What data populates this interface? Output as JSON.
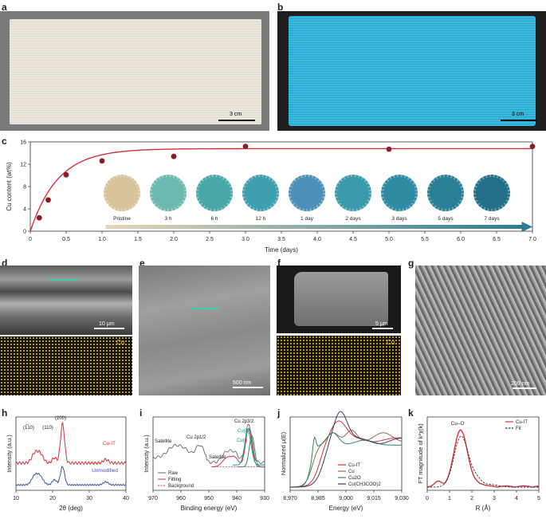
{
  "panels": {
    "a": "a",
    "b": "b",
    "c": "c",
    "d": "d",
    "e": "e",
    "f": "f",
    "g": "g",
    "h": "h",
    "i": "i",
    "j": "j",
    "k": "k"
  },
  "scalebars": {
    "a": "3 cm",
    "b": "3 cm",
    "d": "10 µm",
    "e": "500 nm",
    "f": "5 µm",
    "g": "200 nm"
  },
  "map_labels": {
    "d": "Cu",
    "f": "Cu"
  },
  "colors": {
    "fabric_white": "#e9e4d8",
    "fabric_blue": "#31b3d6",
    "red": "#d3333e",
    "darkred": "#8b1e23",
    "blue": "#3f57a6",
    "teal": "#1aa5a5",
    "green": "#2f8a5c",
    "brown": "#9a6a4a",
    "gold": "#e0a020"
  },
  "chart_data": [
    {
      "panel": "c",
      "type": "scatter",
      "xlabel": "Time (days)",
      "ylabel": "Cu content (wt%)",
      "xlim": [
        0,
        7
      ],
      "ylim": [
        0,
        16
      ],
      "xticks": [
        "0",
        "0.5",
        "1.0",
        "1.5",
        "2.0",
        "2.5",
        "3.0",
        "3.5",
        "4.0",
        "4.5",
        "5.0",
        "5.5",
        "6.0",
        "6.5",
        "7.0"
      ],
      "yticks": [
        "0",
        "4",
        "8",
        "12",
        "16"
      ],
      "x": [
        0.125,
        0.25,
        0.5,
        1,
        2,
        3,
        5,
        7
      ],
      "y": [
        2.4,
        5.6,
        10.1,
        12.6,
        13.4,
        15.2,
        14.7,
        15.2
      ],
      "fit": {
        "plateau": 14.8,
        "rate": 2.6
      },
      "swatches": [
        "Pristine",
        "3 h",
        "6 h",
        "12 h",
        "1 day",
        "2 days",
        "3 days",
        "5 days",
        "7 days"
      ]
    },
    {
      "panel": "h",
      "type": "line",
      "xlabel": "2θ (deg)",
      "ylabel": "Intensity (a.u.)",
      "xlim": [
        10,
        40
      ],
      "xticks": [
        "10",
        "20",
        "30",
        "40"
      ],
      "series": [
        {
          "name": "Cu-IT",
          "color": "#d3333e"
        },
        {
          "name": "Unmodified",
          "color": "#3f57a6"
        }
      ],
      "peaks": [
        "(1̅10)",
        "(110)",
        "(200)"
      ]
    },
    {
      "panel": "i",
      "type": "line",
      "xlabel": "Binding energy (eV)",
      "ylabel": "Intensity (a.u.)",
      "xlim": [
        970,
        928
      ],
      "xticks": [
        "970",
        "960",
        "950",
        "940",
        "930"
      ],
      "series": [
        {
          "name": "Raw",
          "color": "#666666"
        },
        {
          "name": "Fitting",
          "color": "#d3333e"
        },
        {
          "name": "Background",
          "color": "#c23a8a"
        }
      ],
      "annotations": [
        "Satellite",
        "Cu 2p1/2",
        "Satellite",
        "Cu 2p3/2",
        "Cu(II)",
        "Cu(I)"
      ]
    },
    {
      "panel": "j",
      "type": "line",
      "xlabel": "Energy (eV)",
      "ylabel": "Normalized μ(E)",
      "xlim": [
        8970,
        9030
      ],
      "xticks": [
        "8,970",
        "8,985",
        "9,000",
        "9,015",
        "9,030"
      ],
      "series": [
        {
          "name": "Cu-IT",
          "color": "#d3333e"
        },
        {
          "name": "Cu",
          "color": "#9a6a4a"
        },
        {
          "name": "Cu2O",
          "color": "#2f8a5c"
        },
        {
          "name": "Cu(CH3COO)2",
          "color": "#3a3a6a"
        }
      ]
    },
    {
      "panel": "k",
      "type": "line",
      "xlabel": "R (Å)",
      "ylabel": "FT magnitude of k²χ(k)",
      "xlim": [
        0,
        5
      ],
      "xticks": [
        "0",
        "1",
        "2",
        "3",
        "4",
        "5"
      ],
      "series": [
        {
          "name": "Cu-IT",
          "color": "#d3333e"
        },
        {
          "name": "Fit",
          "color": "#333333"
        }
      ],
      "annotations": [
        "Cu–O"
      ]
    }
  ]
}
